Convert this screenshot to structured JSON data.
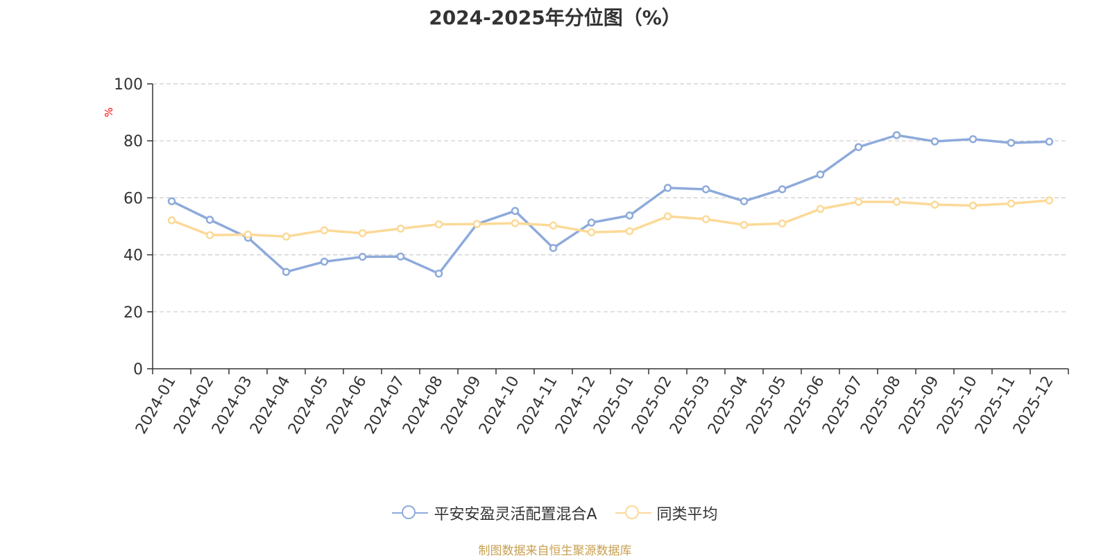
{
  "chart_data": {
    "type": "line",
    "title": "2024-2025年分位图（%）",
    "ylabel": "%",
    "xlabel": "",
    "ylim": [
      0,
      100
    ],
    "yticks": [
      0,
      20,
      40,
      60,
      80,
      100
    ],
    "grid": true,
    "legend_position": "bottom",
    "categories": [
      "2024-01",
      "2024-02",
      "2024-03",
      "2024-04",
      "2024-05",
      "2024-06",
      "2024-07",
      "2024-08",
      "2024-09",
      "2024-10",
      "2024-11",
      "2024-12",
      "2025-01",
      "2025-02",
      "2025-03",
      "2025-04",
      "2025-05",
      "2025-06",
      "2025-07",
      "2025-08",
      "2025-09",
      "2025-10",
      "2025-11",
      "2025-12"
    ],
    "series": [
      {
        "name": "平安安盈灵活配置混合A",
        "color": "#8eaadb",
        "values": [
          58.8,
          52.3,
          46.0,
          34.0,
          37.6,
          39.3,
          39.4,
          33.4,
          50.8,
          55.4,
          42.4,
          51.3,
          53.8,
          63.5,
          63.0,
          58.8,
          63.0,
          68.2,
          77.8,
          82.0,
          79.8,
          80.6,
          79.3,
          79.7
        ]
      },
      {
        "name": "同类平均",
        "color": "#fcd997",
        "values": [
          52.1,
          46.9,
          47.1,
          46.4,
          48.6,
          47.6,
          49.2,
          50.7,
          50.8,
          51.1,
          50.3,
          47.9,
          48.3,
          53.5,
          52.5,
          50.5,
          51.0,
          56.1,
          58.6,
          58.6,
          57.6,
          57.3,
          58.0,
          59.1
        ]
      }
    ]
  },
  "footer": {
    "source": "制图数据来自恒生聚源数据库",
    "source_color": "#c8a050"
  },
  "colors": {
    "axis": "#333333",
    "grid": "#cccccc",
    "ylabel": "#ff0000"
  }
}
